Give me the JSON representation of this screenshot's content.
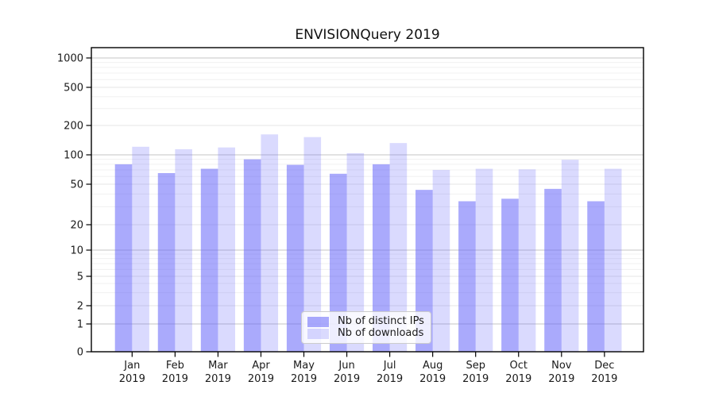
{
  "chart_data": {
    "type": "bar",
    "title": "ENVISIONQuery 2019",
    "categories": [
      "Jan",
      "Feb",
      "Mar",
      "Apr",
      "May",
      "Jun",
      "Jul",
      "Aug",
      "Sep",
      "Oct",
      "Nov",
      "Dec"
    ],
    "category_year": "2019",
    "series": [
      {
        "name": "Nb of distinct IPs",
        "color": "#6464fa",
        "opacity": 0.55,
        "values": [
          80,
          65,
          72,
          90,
          79,
          64,
          80,
          44,
          34,
          36,
          45,
          34
        ]
      },
      {
        "name": "Nb of downloads",
        "color": "#6464fa",
        "opacity": 0.24,
        "values": [
          121,
          114,
          119,
          162,
          152,
          104,
          132,
          70,
          72,
          71,
          89,
          72
        ]
      }
    ],
    "yscale": "symlog",
    "yticks": [
      0,
      1,
      2,
      5,
      10,
      20,
      50,
      100,
      200,
      500,
      1000
    ],
    "ylim": [
      0,
      1000
    ],
    "xlabel": "",
    "ylabel": "",
    "grid": true,
    "legend_position": "lower center",
    "colors": {
      "major_gridline": "#c6c6c6",
      "medium_gridline": "#e4e4e4",
      "minor_gridline": "#f0f0f0",
      "axis": "#000000",
      "text": "#1a1a1a"
    }
  }
}
